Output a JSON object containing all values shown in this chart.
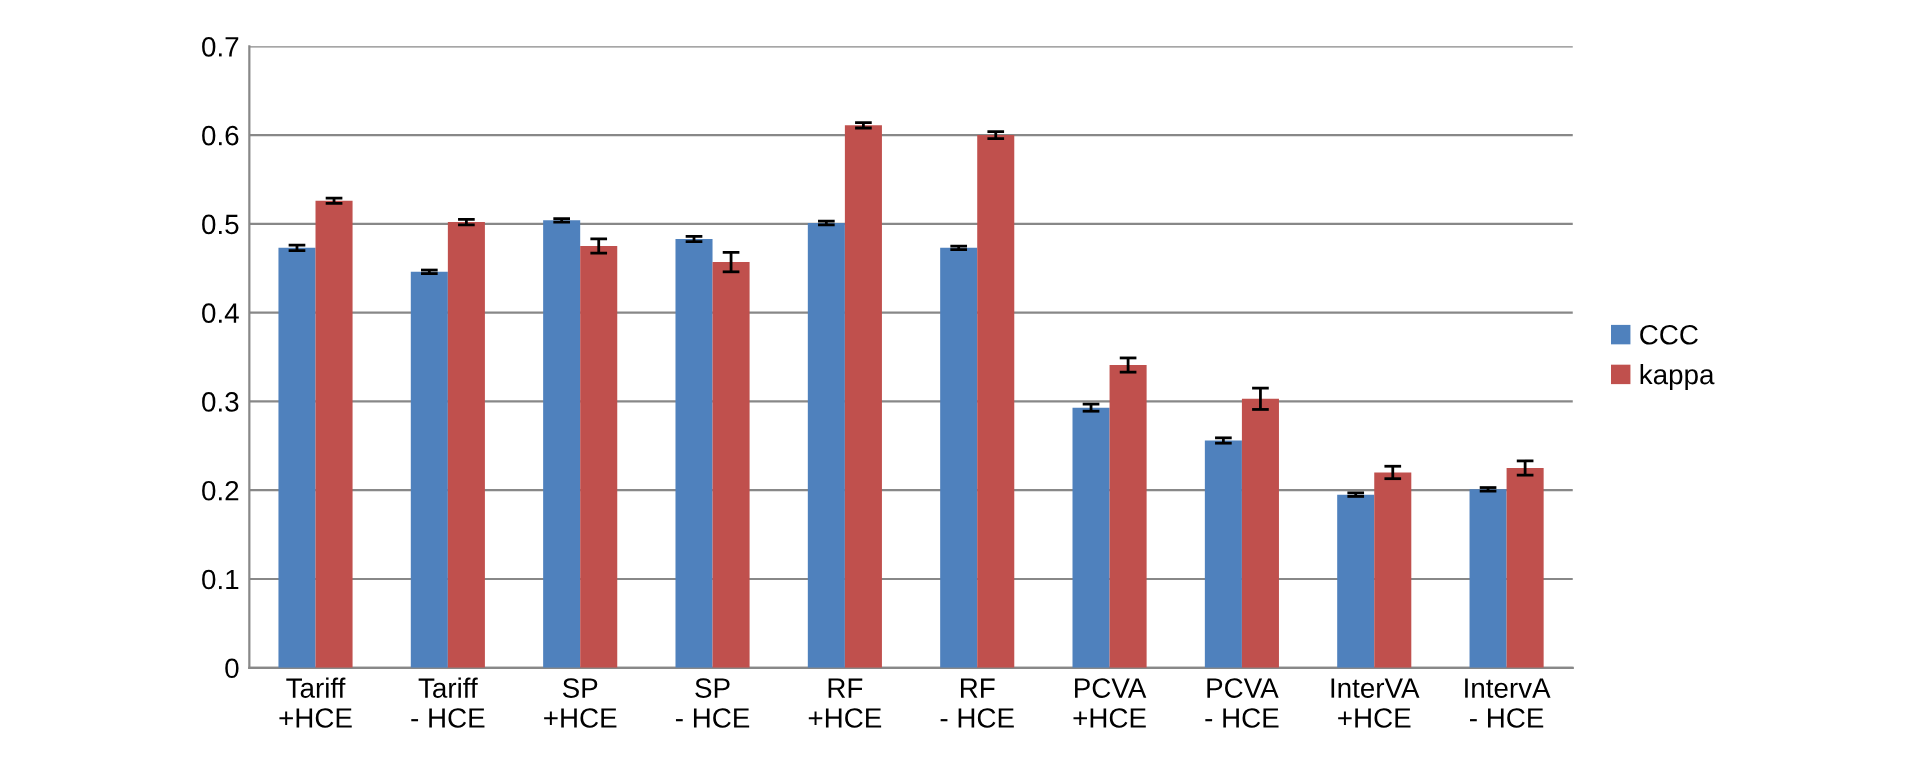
{
  "chart_data": {
    "type": "bar",
    "categories": [
      "Tariff\n+HCE",
      "Tariff\n- HCE",
      "SP\n+HCE",
      "SP\n- HCE",
      "RF\n+HCE",
      "RF\n- HCE",
      "PCVA\n+HCE",
      "PCVA\n- HCE",
      "InterVA\n+HCE",
      "IntervA\n- HCE"
    ],
    "series": [
      {
        "name": "CCC",
        "color": "#4f81bd",
        "values": [
          0.473,
          0.446,
          0.504,
          0.483,
          0.501,
          0.473,
          0.293,
          0.256,
          0.195,
          0.201
        ],
        "errors": [
          0.003,
          0.002,
          0.002,
          0.003,
          0.002,
          0.002,
          0.004,
          0.003,
          0.002,
          0.002
        ]
      },
      {
        "name": "kappa",
        "color": "#c0504d",
        "values": [
          0.526,
          0.502,
          0.475,
          0.457,
          0.611,
          0.6,
          0.341,
          0.303,
          0.22,
          0.225
        ],
        "errors": [
          0.003,
          0.003,
          0.008,
          0.011,
          0.003,
          0.004,
          0.008,
          0.012,
          0.007,
          0.008
        ]
      }
    ],
    "ylim": [
      0,
      0.7
    ],
    "yticks": [
      0,
      0.1,
      0.2,
      0.3,
      0.4,
      0.5,
      0.6,
      0.7
    ],
    "grid": "y",
    "legend": "right"
  }
}
